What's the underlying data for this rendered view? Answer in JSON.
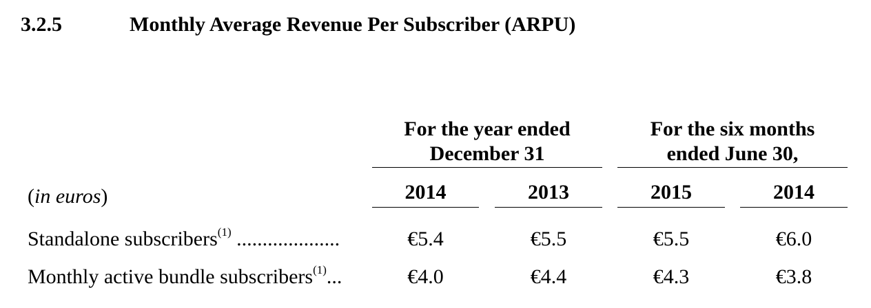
{
  "section": {
    "number": "3.2.5",
    "title": "Monthly Average Revenue Per Subscriber (ARPU)"
  },
  "table": {
    "units_open": "(",
    "units_label": "in euros",
    "units_close": ")",
    "groups": [
      {
        "line1": "For the year ended",
        "line2": "December 31"
      },
      {
        "line1": "For the six months",
        "line2": "ended June 30,"
      }
    ],
    "years": [
      "2014",
      "2013",
      "2015",
      "2014"
    ],
    "rows": [
      {
        "label": "Standalone subscribers",
        "footnote": "(1)",
        "leader": " ....................",
        "values": [
          "€5.4",
          "€5.5",
          "€5.5",
          "€6.0"
        ]
      },
      {
        "label": "Monthly active bundle subscribers",
        "footnote": "(1)",
        "leader": "...",
        "values": [
          "€4.0",
          "€4.4",
          "€4.3",
          "€3.8"
        ]
      }
    ]
  }
}
